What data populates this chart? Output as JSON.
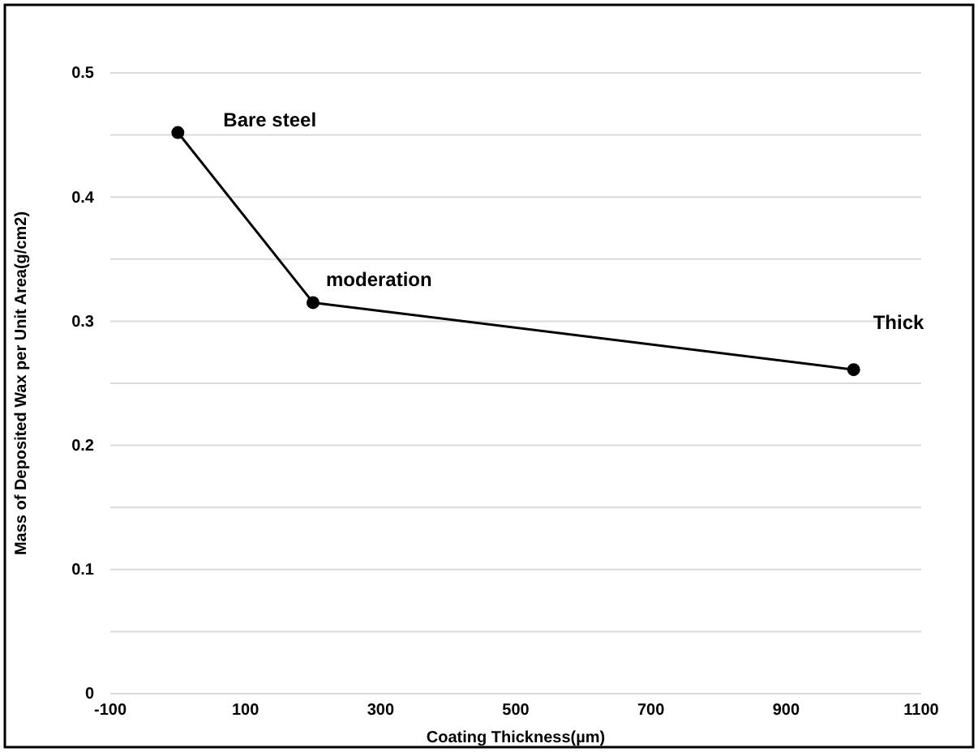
{
  "chart_data": {
    "type": "line",
    "xlabel": "Coating Thickness(µm)",
    "ylabel": "Mass of Deposited Wax per Unit Area(g/cm2)",
    "x": [
      0,
      200,
      1000
    ],
    "series": [
      {
        "color": "#000000",
        "values": [
          0.452,
          0.315,
          0.261
        ]
      }
    ],
    "xlim": [
      -100,
      1100
    ],
    "xticks": [
      -100,
      100,
      300,
      500,
      700,
      900,
      1100
    ],
    "ylim": [
      0,
      0.5
    ],
    "yticks": [
      0,
      {
        "value": 0.05,
        "label": null
      },
      0.1,
      {
        "value": 0.15,
        "label": null
      },
      0.2,
      {
        "value": 0.25,
        "label": null
      },
      0.3,
      {
        "value": 0.35,
        "label": null
      },
      0.4,
      {
        "value": 0.45,
        "label": null
      },
      0.5
    ],
    "grid": "y",
    "marker": "circle",
    "line_style": "solid",
    "annotations": [
      {
        "text": "Bare steel",
        "x": 0,
        "y": 0.452
      },
      {
        "text": "moderation",
        "x": 200,
        "y": 0.315
      },
      {
        "text": "Thick",
        "x": 1000,
        "y": 0.261
      }
    ]
  }
}
